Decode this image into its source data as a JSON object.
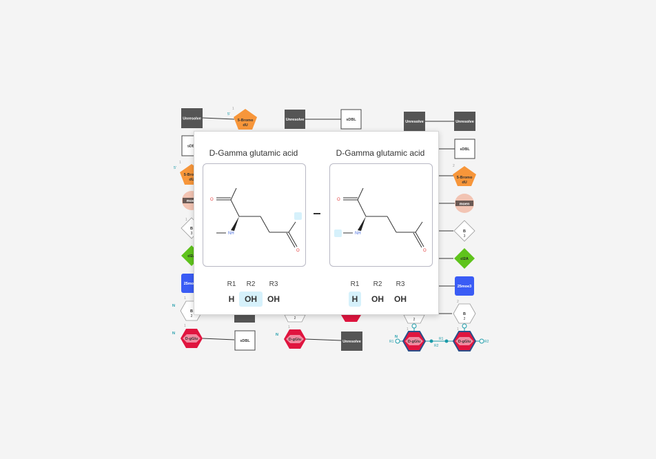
{
  "background_labels": {
    "unresolved": "Unresolve",
    "sdbl": "sDBL",
    "bromo_line1": "5-Bromo",
    "bromo_line2": "dU",
    "moen": "moen",
    "cl2a": "cl2A",
    "moe3": "25moe3",
    "b_letter": "B",
    "b_num2": "2",
    "b_num3": "3",
    "dglu": "D-gGlu",
    "five_prime": "5'",
    "n_label": "N",
    "r1": "R1",
    "r2": "R2",
    "one": "1",
    "two": "2"
  },
  "popup": {
    "left": {
      "title": "D-Gamma glutamic acid",
      "atoms": {
        "o_top": "O",
        "nh": "NH",
        "o_right": "O"
      },
      "r_headers": [
        "R1",
        "R2",
        "R3"
      ],
      "r_values": [
        "H",
        "OH",
        "OH"
      ],
      "highlighted": "R2"
    },
    "separator": "–",
    "right": {
      "title": "D-Gamma glutamic acid",
      "atoms": {
        "o_top": "O",
        "nh": "NH",
        "o_right": "O"
      },
      "r_headers": [
        "R1",
        "R2",
        "R3"
      ],
      "r_values": [
        "H",
        "OH",
        "OH"
      ],
      "highlighted": "R1"
    }
  },
  "colors": {
    "unresolved": "#555555",
    "bromo": "#f7963a",
    "moen": "#f2c4b3",
    "cl2a": "#5fc31c",
    "moe3": "#3a5cf5",
    "dglu": "#e0153f",
    "dglu_border": "#29508a",
    "highlight": "#d6f1fb",
    "oxygen": "#e23b3b",
    "nitrogen": "#4a6fe0",
    "teal": "#1a9aa8"
  }
}
